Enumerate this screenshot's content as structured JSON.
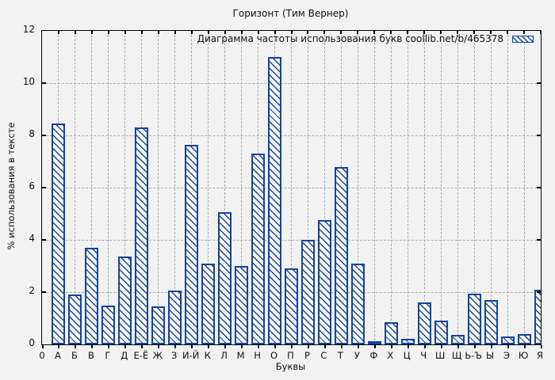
{
  "title": "Горизонт (Тим Вернер)",
  "legend": {
    "label": "Диаграмма частоты использования букв  coollib.net/b/465378"
  },
  "axes": {
    "y_label": "% использования в тексте",
    "x_label": "Буквы",
    "x_origin_label": "0",
    "y_tick_labels": [
      "0",
      "2",
      "4",
      "6",
      "8",
      "10",
      "12"
    ]
  },
  "colors": {
    "bar_blue": "#1243a8",
    "background": "#f2f2f2",
    "grid": "#a9a9a9",
    "axis": "#000000"
  },
  "chart_data": {
    "type": "bar",
    "title": "Горизонт (Тим Вернер)",
    "xlabel": "Буквы",
    "ylabel": "% использования в тексте",
    "ylim": [
      0,
      12
    ],
    "y_tick_step": 2,
    "grid": true,
    "bar_style": "blue diagonal hatch, hollow fill",
    "legend_position": "top-right-inside",
    "legend_label": "Диаграмма частоты использования букв  coollib.net/b/465378",
    "categories": [
      "А",
      "Б",
      "В",
      "Г",
      "Д",
      "Е-Ё",
      "Ж",
      "З",
      "И-Й",
      "К",
      "Л",
      "М",
      "Н",
      "О",
      "П",
      "Р",
      "С",
      "Т",
      "У",
      "Ф",
      "Х",
      "Ц",
      "Ч",
      "Ш",
      "Щ",
      "Ь-Ъ",
      "Ы",
      "Э",
      "Ю",
      "Я"
    ],
    "values": [
      8.45,
      1.9,
      3.7,
      1.5,
      3.35,
      8.3,
      1.45,
      2.05,
      7.65,
      3.1,
      5.05,
      3.0,
      7.3,
      11.0,
      2.9,
      4.0,
      4.75,
      6.8,
      3.1,
      0.05,
      0.85,
      0.2,
      1.6,
      0.9,
      0.35,
      1.95,
      1.7,
      0.3,
      0.4,
      2.1
    ]
  }
}
